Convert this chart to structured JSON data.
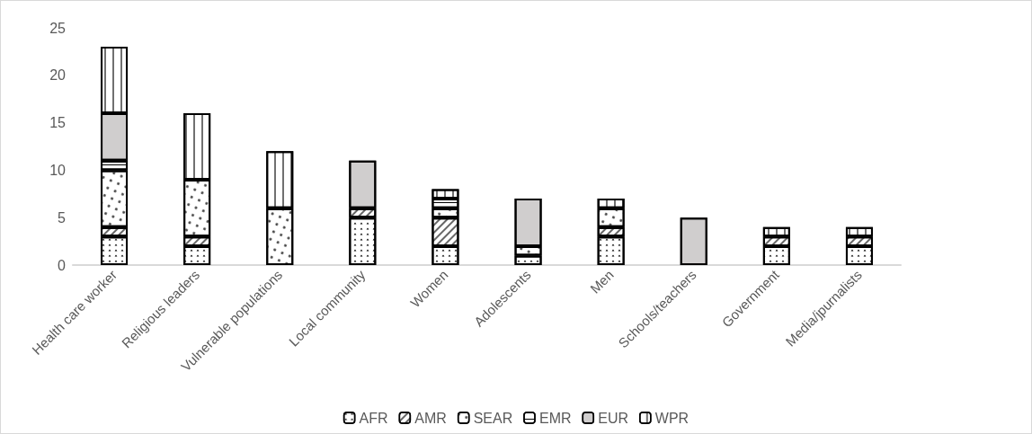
{
  "chart_data": {
    "type": "bar",
    "stacked": true,
    "categories": [
      "Health care worker",
      "Religious leaders",
      "Vulnerable populations",
      "Local community",
      "Women",
      "Adolescents",
      "Men",
      "Schools/teachers",
      "Government",
      "Media/jpurnalists"
    ],
    "series": [
      {
        "name": "AFR",
        "color": "#ffffff",
        "values": [
          3,
          2,
          0,
          5,
          2,
          1,
          3,
          0,
          2,
          2
        ]
      },
      {
        "name": "AMR",
        "color": "#ffffff",
        "values": [
          1,
          1,
          0,
          1,
          3,
          0,
          1,
          0,
          1,
          1
        ]
      },
      {
        "name": "SEAR",
        "color": "#ffffff",
        "values": [
          6,
          6,
          6,
          0,
          1,
          1,
          2,
          0,
          0,
          0
        ]
      },
      {
        "name": "EMR",
        "color": "#ffffff",
        "values": [
          1,
          0,
          0,
          0,
          1,
          0,
          0,
          0,
          0,
          0
        ]
      },
      {
        "name": "EUR",
        "color": "#d0cece",
        "values": [
          5,
          0,
          0,
          5,
          0,
          5,
          0,
          5,
          0,
          0
        ]
      },
      {
        "name": "WPR",
        "color": "#ffffff",
        "values": [
          7,
          7,
          6,
          0,
          1,
          0,
          1,
          0,
          1,
          1
        ]
      }
    ],
    "ylim": [
      0,
      25
    ],
    "yticks": [
      0,
      5,
      10,
      15,
      20,
      25
    ],
    "grid": false,
    "legend": "bottom"
  }
}
